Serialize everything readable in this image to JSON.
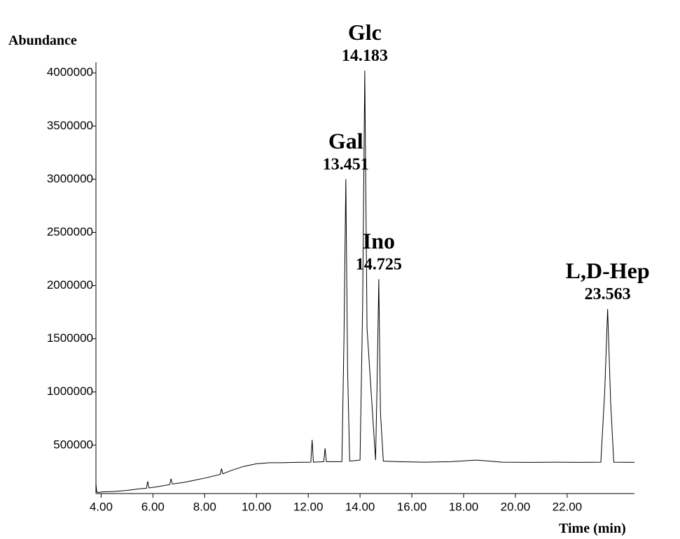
{
  "chart_data": {
    "type": "line",
    "y_label": "Abundance",
    "x_label": "Time (min)",
    "color": "#000000",
    "x": [
      3.8,
      3.83,
      3.86,
      3.9,
      4.0,
      4.5,
      5.0,
      5.5,
      5.75,
      5.8,
      5.85,
      6.2,
      6.65,
      6.7,
      6.75,
      7.2,
      7.6,
      8.0,
      8.6,
      8.65,
      8.7,
      9.0,
      9.5,
      10.0,
      10.5,
      11.0,
      11.5,
      12.1,
      12.15,
      12.2,
      12.6,
      12.65,
      12.7,
      13.3,
      13.38,
      13.451,
      13.52,
      13.6,
      14.0,
      14.1,
      14.183,
      14.27,
      14.6,
      14.66,
      14.725,
      14.79,
      14.9,
      15.5,
      16.5,
      17.5,
      18.5,
      19.5,
      20.5,
      21.5,
      22.5,
      23.3,
      23.45,
      23.563,
      23.68,
      23.8,
      24.6
    ],
    "values": [
      140000,
      60000,
      58000,
      55000,
      60000,
      65000,
      75000,
      90000,
      95000,
      160000,
      98000,
      110000,
      130000,
      185000,
      135000,
      150000,
      170000,
      190000,
      225000,
      280000,
      230000,
      260000,
      300000,
      325000,
      335000,
      335000,
      338000,
      340000,
      550000,
      340000,
      345000,
      470000,
      345000,
      345000,
      1500000,
      3000000,
      1200000,
      350000,
      360000,
      1800000,
      4020000,
      1600000,
      360000,
      1100000,
      2060000,
      800000,
      350000,
      345000,
      340000,
      345000,
      360000,
      340000,
      338000,
      340000,
      338000,
      340000,
      1000000,
      1780000,
      900000,
      340000,
      338000
    ],
    "xlim": [
      3.8,
      24.6
    ],
    "ylim": [
      45000,
      4100000
    ],
    "xticks": [
      {
        "value": 4,
        "label": "4.00"
      },
      {
        "value": 6,
        "label": "6.00"
      },
      {
        "value": 8,
        "label": "8.00"
      },
      {
        "value": 10,
        "label": "10.00"
      },
      {
        "value": 12,
        "label": "12.00"
      },
      {
        "value": 14,
        "label": "14.00"
      },
      {
        "value": 16,
        "label": "16.00"
      },
      {
        "value": 18,
        "label": "18.00"
      },
      {
        "value": 20,
        "label": "20.00"
      },
      {
        "value": 22,
        "label": "22.00"
      }
    ],
    "yticks": [
      500000,
      1000000,
      1500000,
      2000000,
      2500000,
      3000000,
      3500000,
      4000000
    ],
    "annotations": [
      {
        "label": "Gal",
        "rt": 13.451
      },
      {
        "label": "Glc",
        "rt": 14.183
      },
      {
        "label": "Ino",
        "rt": 14.725
      },
      {
        "label": "L,D-Hep",
        "rt": 23.563
      }
    ]
  }
}
